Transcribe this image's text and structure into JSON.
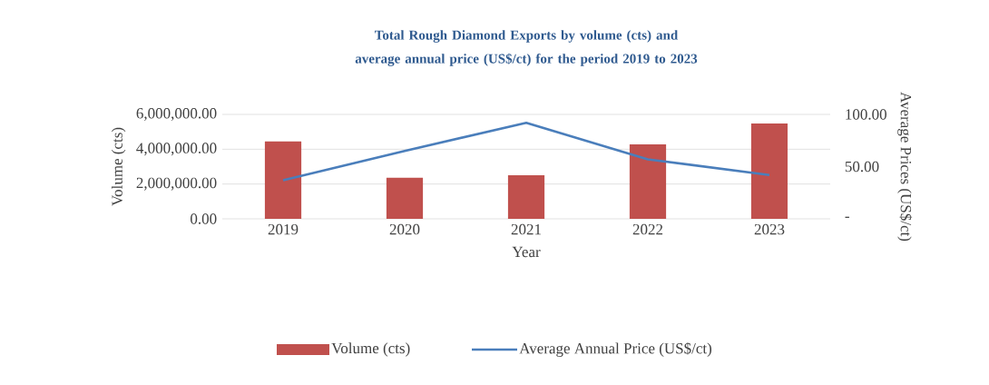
{
  "chart_data": {
    "type": "bar",
    "title": "Total Rough Diamond Exports by volume (cts) and average annual price (US$/ct) for the period 2019 to 2023",
    "categories": [
      "2019",
      "2020",
      "2021",
      "2022",
      "2023"
    ],
    "series": [
      {
        "name": "Volume (cts)",
        "color": "#c0504d",
        "values": [
          4450000,
          2360000,
          2500000,
          4280000,
          5480000
        ]
      },
      {
        "name": "Average Annual Price (US$/ct)",
        "type": "line",
        "axis": "y2",
        "color": "#4a7ebb",
        "values": [
          37,
          65,
          92,
          57,
          42
        ]
      }
    ],
    "xlabel": "Year",
    "ylabel": "Volume (cts)",
    "y2label": "Average Prices (US$/ct)",
    "ylim": [
      0,
      6000000
    ],
    "yticks": [
      {
        "value": 0,
        "label": "0.00"
      },
      {
        "value": 2000000,
        "label": "2,000,000.00"
      },
      {
        "value": 4000000,
        "label": "4,000,000.00"
      },
      {
        "value": 6000000,
        "label": "6,000,000.00"
      }
    ],
    "y2lim": [
      0,
      100
    ],
    "y2ticks": [
      {
        "value": 0,
        "label": "-"
      },
      {
        "value": 50,
        "label": "50.00"
      },
      {
        "value": 100,
        "label": "100.00"
      }
    ],
    "grid": "y",
    "legend": "bottom",
    "marker": "none",
    "line_style": "solid"
  }
}
